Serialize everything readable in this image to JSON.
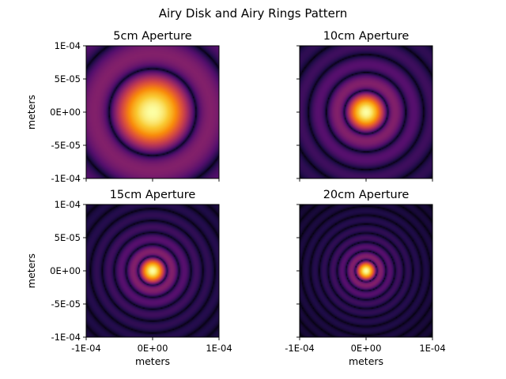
{
  "figure": {
    "suptitle": "Airy Disk and Airy Rings Pattern"
  },
  "colors": {
    "colormap": "inferno",
    "background": "#ffffff",
    "axis_frame": "#000000"
  },
  "chart_data": [
    {
      "type": "heatmap",
      "title": "5cm Aperture",
      "aperture_cm": 5,
      "xlabel": "",
      "ylabel": "meters",
      "xlim": [
        -0.0001,
        0.0001
      ],
      "ylim": [
        -0.0001,
        0.0001
      ],
      "xticks": [
        -0.0001,
        0,
        0.0001
      ],
      "yticks": [
        0.0001,
        5e-05,
        0,
        -5e-05,
        -0.0001
      ],
      "xtick_labels": [],
      "ytick_labels": [
        "1E-04",
        "5E-05",
        "0E+00",
        "-5E-05",
        "-1E-04"
      ],
      "first_dark_ring_radius_m": 6.55e-05
    },
    {
      "type": "heatmap",
      "title": "10cm Aperture",
      "aperture_cm": 10,
      "xlabel": "",
      "ylabel": "",
      "xlim": [
        -0.0001,
        0.0001
      ],
      "ylim": [
        -0.0001,
        0.0001
      ],
      "xticks": [
        -0.0001,
        0,
        0.0001
      ],
      "yticks": [
        0.0001,
        5e-05,
        0,
        -5e-05,
        -0.0001
      ],
      "xtick_labels": [],
      "ytick_labels": [],
      "first_dark_ring_radius_m": 3.27e-05
    },
    {
      "type": "heatmap",
      "title": "15cm Aperture",
      "aperture_cm": 15,
      "xlabel": "meters",
      "ylabel": "meters",
      "xlim": [
        -0.0001,
        0.0001
      ],
      "ylim": [
        -0.0001,
        0.0001
      ],
      "xticks": [
        -0.0001,
        0,
        0.0001
      ],
      "yticks": [
        0.0001,
        5e-05,
        0,
        -5e-05,
        -0.0001
      ],
      "xtick_labels": [
        "-1E-04",
        "0E+00",
        "1E-04"
      ],
      "ytick_labels": [
        "1E-04",
        "5E-05",
        "0E+00",
        "-5E-05",
        "-1E-04"
      ],
      "first_dark_ring_radius_m": 2.18e-05
    },
    {
      "type": "heatmap",
      "title": "20cm Aperture",
      "aperture_cm": 20,
      "xlabel": "meters",
      "ylabel": "",
      "xlim": [
        -0.0001,
        0.0001
      ],
      "ylim": [
        -0.0001,
        0.0001
      ],
      "xticks": [
        -0.0001,
        0,
        0.0001
      ],
      "yticks": [
        0.0001,
        5e-05,
        0,
        -5e-05,
        -0.0001
      ],
      "xtick_labels": [
        "-1E-04",
        "0E+00",
        "1E-04"
      ],
      "ytick_labels": [],
      "first_dark_ring_radius_m": 1.64e-05
    }
  ]
}
